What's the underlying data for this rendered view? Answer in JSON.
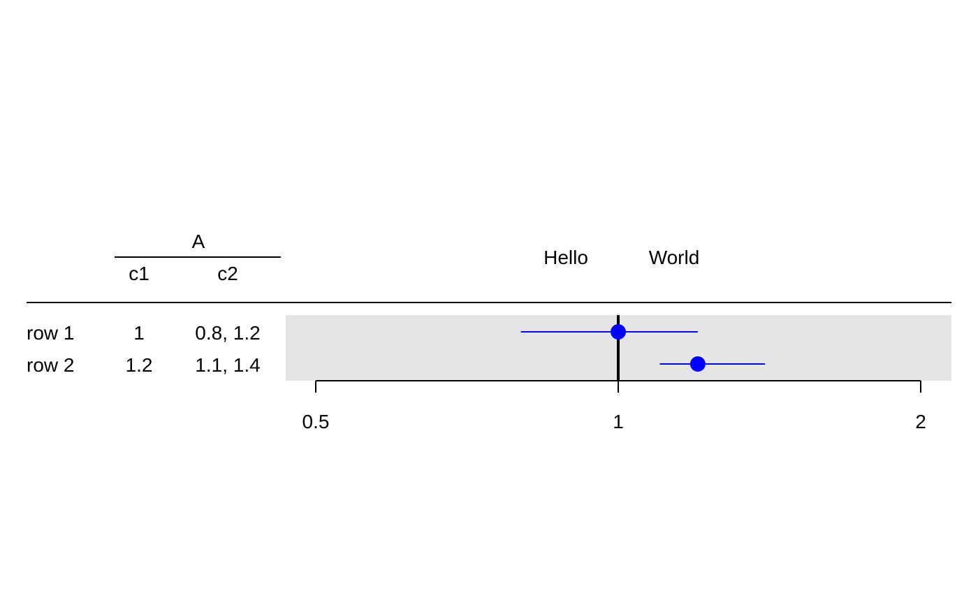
{
  "chart_data": {
    "type": "forest",
    "x_scale": "log",
    "xlim": [
      0.45,
      2.1
    ],
    "x_ticks": [
      0.5,
      1,
      2
    ],
    "x_tick_labels": [
      "0.5",
      "1",
      "2"
    ],
    "reference_line": 1,
    "left_label": "Hello",
    "right_label": "World",
    "table": {
      "group_header": "A",
      "columns": [
        "c1",
        "c2"
      ],
      "rows": [
        {
          "label": "row 1",
          "c1": "1",
          "c2": "0.8, 1.2"
        },
        {
          "label": "row 2",
          "c1": "1.2",
          "c2": "1.1, 1.4"
        }
      ]
    },
    "points": [
      {
        "estimate": 1.0,
        "lower": 0.8,
        "upper": 1.2
      },
      {
        "estimate": 1.2,
        "lower": 1.1,
        "upper": 1.4
      }
    ],
    "colors": {
      "point": "#0000ff",
      "ci_line": "#0000ff",
      "panel_background": "#e5e5e5",
      "axis": "#000000"
    }
  }
}
